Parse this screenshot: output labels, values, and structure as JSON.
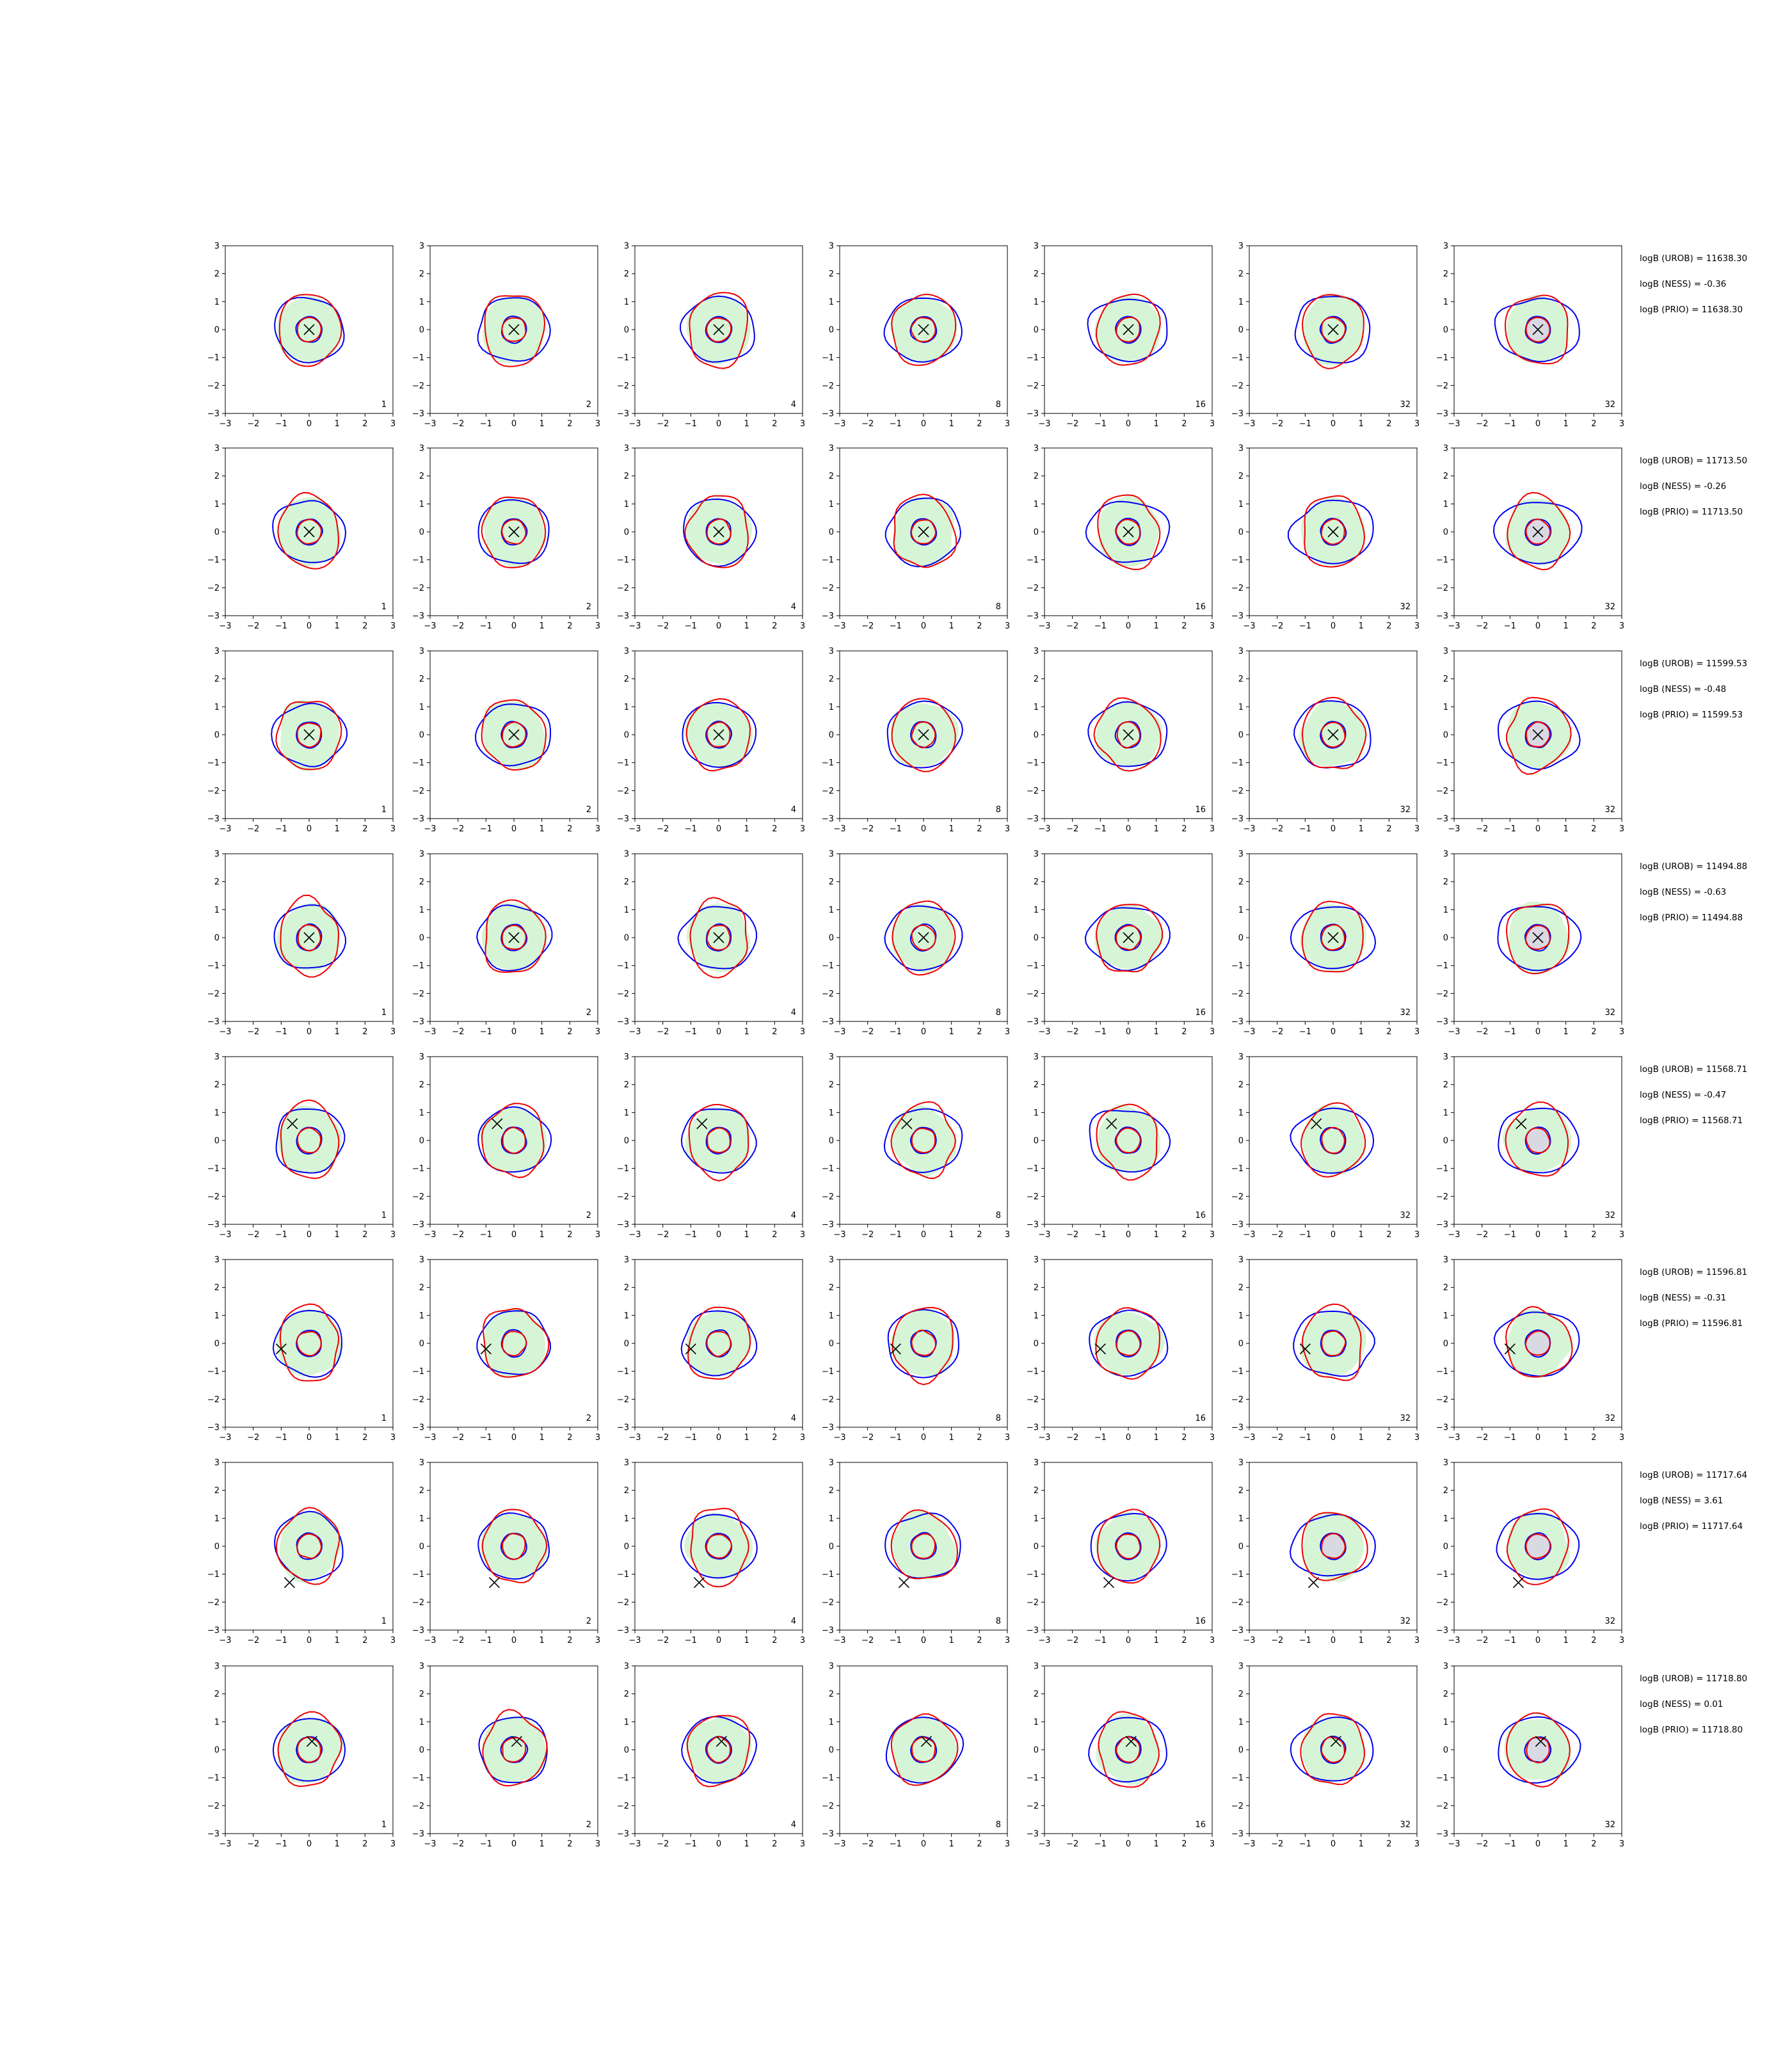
{
  "chart_data": {
    "type": "contour",
    "layout": {
      "rows": 8,
      "cols": 7
    },
    "xlim": [
      -3,
      3
    ],
    "ylim": [
      -3,
      3
    ],
    "xticks": [
      -3,
      -2,
      -1,
      0,
      1,
      2,
      3
    ],
    "yticks": [
      -3,
      -2,
      -1,
      0,
      1,
      2,
      3
    ],
    "tick_labels": [
      "−3",
      "−2",
      "−1",
      "0",
      "1",
      "2",
      "3"
    ],
    "grid": false,
    "colors": {
      "blue": "#0000ee",
      "red": "#ee0000",
      "fill": "#d6f5d6",
      "fill_grey": "#d9d9e3",
      "marker": "#000000"
    },
    "column_labels": [
      "1",
      "2",
      "4",
      "8",
      "16",
      "32",
      "32"
    ],
    "rows": [
      {
        "marker": [
          0.0,
          0.0
        ],
        "annotations": [
          "logB (UROB) = 11638.30",
          "logB (NESS) = -0.36",
          "logB (PRIO) = 11638.30"
        ]
      },
      {
        "marker": [
          0.0,
          0.0
        ],
        "annotations": [
          "logB (UROB) = 11713.50",
          "logB (NESS) = -0.26",
          "logB (PRIO) = 11713.50"
        ]
      },
      {
        "marker": [
          0.0,
          0.0
        ],
        "annotations": [
          "logB (UROB) = 11599.53",
          "logB (NESS) = -0.48",
          "logB (PRIO) = 11599.53"
        ]
      },
      {
        "marker": [
          0.0,
          0.0
        ],
        "annotations": [
          "logB (UROB) = 11494.88",
          "logB (NESS) = -0.63",
          "logB (PRIO) = 11494.88"
        ]
      },
      {
        "marker": [
          -0.6,
          0.6
        ],
        "annotations": [
          "logB (UROB) = 11568.71",
          "logB (NESS) = -0.47",
          "logB (PRIO) = 11568.71"
        ]
      },
      {
        "marker": [
          -1.0,
          -0.2
        ],
        "annotations": [
          "logB (UROB) = 11596.81",
          "logB (NESS) = -0.31",
          "logB (PRIO) = 11596.81"
        ]
      },
      {
        "marker": [
          -0.7,
          -1.3
        ],
        "annotations": [
          "logB (UROB) = 11717.64",
          "logB (NESS) = 3.61",
          "logB (PRIO) = 11717.64"
        ]
      },
      {
        "marker": [
          0.1,
          0.3
        ],
        "annotations": [
          "logB (UROB) = 11718.80",
          "logB (NESS) = 0.01",
          "logB (PRIO) = 11718.80"
        ]
      }
    ]
  }
}
